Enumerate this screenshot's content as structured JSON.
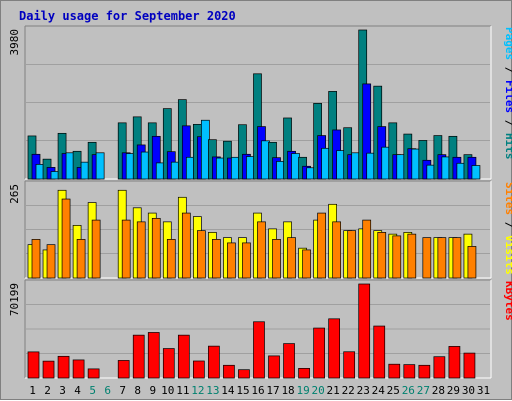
{
  "chart_data": {
    "type": "bar",
    "title": "Daily usage for September 2020",
    "colors": {
      "background": "#c0c0c0",
      "title": "#0000c0",
      "hits": "#008080",
      "files": "#0000ff",
      "pages": "#00c0ff",
      "visits": "#ffff00",
      "sites": "#ff8000",
      "kbytes": "#ff0000",
      "weekday_label": "#000000",
      "weekend_label": "#00806f"
    },
    "days": [
      "1",
      "2",
      "3",
      "4",
      "5",
      "6",
      "7",
      "8",
      "9",
      "10",
      "11",
      "12",
      "13",
      "14",
      "15",
      "16",
      "17",
      "18",
      "19",
      "20",
      "21",
      "22",
      "23",
      "24",
      "25",
      "26",
      "27",
      "28",
      "29",
      "30",
      "31"
    ],
    "weekend_days": [
      "5",
      "6",
      "12",
      "13",
      "19",
      "20",
      "26",
      "27"
    ],
    "panels": [
      {
        "id": "hits_files_pages",
        "max_label": "3980",
        "ymax": 3980,
        "legend": [
          {
            "text": "Pages",
            "color": "#00c0ff"
          },
          {
            "text": " / ",
            "color": "#000000"
          },
          {
            "text": "Files",
            "color": "#0000ff"
          },
          {
            "text": " / ",
            "color": "#000000"
          },
          {
            "text": "Hits",
            "color": "#008080"
          }
        ],
        "series": [
          {
            "name": "Hits",
            "color": "#008080",
            "values": [
              1150,
              530,
              1220,
              740,
              980,
              0,
              1500,
              1660,
              1500,
              1880,
              2120,
              1460,
              1050,
              1010,
              1450,
              2810,
              980,
              1630,
              580,
              2020,
              2340,
              1370,
              3980,
              2480,
              1500,
              1200,
              1030,
              1160,
              1140,
              650,
              0
            ]
          },
          {
            "name": "Files",
            "color": "#0000ff",
            "values": [
              660,
              310,
              680,
              310,
              650,
              0,
              700,
              910,
              1140,
              730,
              1420,
              1130,
              590,
              560,
              660,
              1400,
              570,
              740,
              340,
              1160,
              1310,
              650,
              2540,
              1400,
              650,
              810,
              500,
              650,
              580,
              580,
              0
            ]
          },
          {
            "name": "Pages",
            "color": "#00c0ff",
            "values": [
              390,
              200,
              700,
              450,
              700,
              0,
              680,
              720,
              430,
              450,
              580,
              1570,
              560,
              580,
              600,
              1020,
              470,
              680,
              300,
              820,
              760,
              700,
              690,
              850,
              650,
              800,
              370,
              590,
              420,
              360,
              0
            ]
          }
        ]
      },
      {
        "id": "visits_sites",
        "max_label": "265",
        "ymax": 265,
        "legend": [
          {
            "text": "Sites",
            "color": "#ff8000"
          },
          {
            "text": " / ",
            "color": "#000000"
          },
          {
            "text": "Visits",
            "color": "#ffff00"
          }
        ],
        "series": [
          {
            "name": "Visits",
            "color": "#ffff00",
            "values": [
              95,
              80,
              250,
              150,
              215,
              0,
              250,
              200,
              185,
              160,
              230,
              175,
              130,
              115,
              115,
              185,
              140,
              160,
              85,
              165,
              210,
              135,
              140,
              135,
              125,
              130,
              0,
              115,
              115,
              125,
              0
            ]
          },
          {
            "name": "Sites",
            "color": "#ff8000",
            "values": [
              110,
              95,
              225,
              110,
              165,
              0,
              165,
              160,
              170,
              110,
              185,
              135,
              110,
              100,
              100,
              160,
              110,
              115,
              80,
              185,
              160,
              135,
              165,
              130,
              120,
              125,
              115,
              115,
              115,
              90,
              0
            ]
          }
        ]
      },
      {
        "id": "kbytes",
        "max_label": "70199",
        "ymax": 70199,
        "legend": [
          {
            "text": "KBytes",
            "color": "#ff0000"
          }
        ],
        "series": [
          {
            "name": "KBytes",
            "color": "#ff0000",
            "values": [
              19500,
              12600,
              16200,
              13500,
              6800,
              0,
              13100,
              32000,
              34000,
              22000,
              32000,
              12700,
              23800,
              9500,
              6200,
              42000,
              16500,
              25700,
              7200,
              37300,
              44200,
              19600,
              70199,
              38800,
              10300,
              10000,
              9500,
              15900,
              23600,
              18600,
              0
            ]
          }
        ]
      }
    ]
  }
}
